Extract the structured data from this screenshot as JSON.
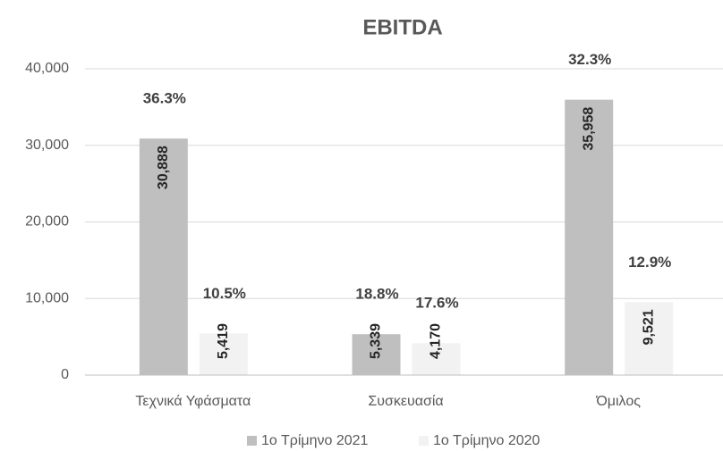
{
  "chart_data": {
    "type": "bar",
    "title": "EBITDA",
    "categories": [
      "Τεχνικά Υφάσματα",
      "Συσκευασία",
      "Όμιλος"
    ],
    "series": [
      {
        "name": "1ο Τρίμηνο 2021",
        "color": "#bfbfbf",
        "values": [
          30888,
          5339,
          35958
        ],
        "value_labels": [
          "30,888",
          "5,339",
          "35,958"
        ],
        "annotations": [
          "36.3%",
          "18.8%",
          "32.3%"
        ]
      },
      {
        "name": "1ο Τρίμηνο 2020",
        "color": "#f2f2f2",
        "values": [
          5419,
          4170,
          9521
        ],
        "value_labels": [
          "5,419",
          "4,170",
          "9,521"
        ],
        "annotations": [
          "10.5%",
          "17.6%",
          "12.9%"
        ]
      }
    ],
    "ylim": [
      0,
      40000
    ],
    "yticks": [
      0,
      {
        "value": 10000,
        "label": "10,000"
      },
      {
        "value": 20000,
        "label": "20,000"
      },
      {
        "value": 30000,
        "label": "30,000"
      },
      {
        "value": 40000,
        "label": "40,000"
      }
    ],
    "grid": true,
    "legend": "bottom"
  }
}
